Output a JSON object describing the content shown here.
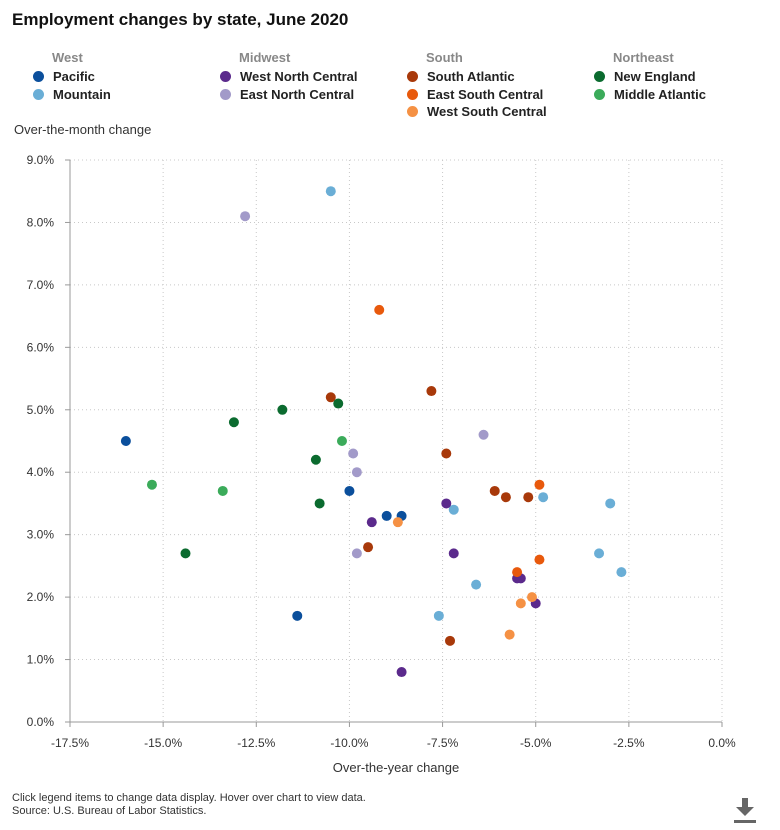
{
  "title": "Employment changes by state, June 2020",
  "legend": [
    {
      "region": "West",
      "items": [
        {
          "label": "Pacific",
          "color": "#0b4f9c"
        },
        {
          "label": "Mountain",
          "color": "#6aaed6"
        }
      ]
    },
    {
      "region": "Midwest",
      "items": [
        {
          "label": "West North Central",
          "color": "#5b2a8c"
        },
        {
          "label": "East North Central",
          "color": "#a29ac9"
        }
      ]
    },
    {
      "region": "South",
      "items": [
        {
          "label": "South Atlantic",
          "color": "#a8390a"
        },
        {
          "label": "East South Central",
          "color": "#e8590c"
        },
        {
          "label": "West South Central",
          "color": "#f59144"
        }
      ]
    },
    {
      "region": "Northeast",
      "items": [
        {
          "label": "New England",
          "color": "#0b6b2f"
        },
        {
          "label": "Middle Atlantic",
          "color": "#3bab5a"
        }
      ]
    }
  ],
  "footer": {
    "note": "Click legend items to change data display. Hover over chart to view data.",
    "source": "Source: U.S. Bureau of Labor Statistics."
  },
  "icons": {
    "download": "download-icon"
  },
  "chart_data": {
    "type": "scatter",
    "xlabel": "Over-the-year change",
    "ylabel": "Over-the-month change",
    "xlim": [
      -17.5,
      0.0
    ],
    "ylim": [
      0.0,
      9.0
    ],
    "x_ticks": [
      "-17.5%",
      "-15.0%",
      "-12.5%",
      "-10.0%",
      "-7.5%",
      "-5.0%",
      "-2.5%",
      "0.0%"
    ],
    "y_ticks": [
      "0.0%",
      "1.0%",
      "2.0%",
      "3.0%",
      "4.0%",
      "5.0%",
      "6.0%",
      "7.0%",
      "8.0%",
      "9.0%"
    ],
    "grid": true,
    "series": [
      {
        "name": "Pacific",
        "color": "#0b4f9c",
        "points": [
          [
            -16.0,
            4.5
          ],
          [
            -11.4,
            1.7
          ],
          [
            -10.0,
            3.7
          ],
          [
            -9.0,
            3.3
          ],
          [
            -8.6,
            3.3
          ]
        ]
      },
      {
        "name": "Mountain",
        "color": "#6aaed6",
        "points": [
          [
            -10.5,
            8.5
          ],
          [
            -7.6,
            1.7
          ],
          [
            -7.2,
            3.4
          ],
          [
            -6.6,
            2.2
          ],
          [
            -4.8,
            3.6
          ],
          [
            -3.3,
            2.7
          ],
          [
            -3.0,
            3.5
          ],
          [
            -2.7,
            2.4
          ]
        ]
      },
      {
        "name": "West North Central",
        "color": "#5b2a8c",
        "points": [
          [
            -9.4,
            3.2
          ],
          [
            -8.6,
            0.8
          ],
          [
            -7.4,
            3.5
          ],
          [
            -7.2,
            2.7
          ],
          [
            -5.5,
            2.3
          ],
          [
            -5.4,
            2.3
          ],
          [
            -5.0,
            1.9
          ]
        ]
      },
      {
        "name": "East North Central",
        "color": "#a29ac9",
        "points": [
          [
            -12.8,
            8.1
          ],
          [
            -9.9,
            4.3
          ],
          [
            -9.8,
            4.0
          ],
          [
            -9.8,
            2.7
          ],
          [
            -6.4,
            4.6
          ]
        ]
      },
      {
        "name": "South Atlantic",
        "color": "#a8390a",
        "points": [
          [
            -10.5,
            5.2
          ],
          [
            -9.5,
            2.8
          ],
          [
            -7.8,
            5.3
          ],
          [
            -7.4,
            4.3
          ],
          [
            -7.3,
            1.3
          ],
          [
            -6.1,
            3.7
          ],
          [
            -5.8,
            3.6
          ],
          [
            -5.2,
            3.6
          ]
        ]
      },
      {
        "name": "East South Central",
        "color": "#e8590c",
        "points": [
          [
            -9.2,
            6.6
          ],
          [
            -5.5,
            2.4
          ],
          [
            -4.9,
            3.8
          ],
          [
            -4.9,
            2.6
          ]
        ]
      },
      {
        "name": "West South Central",
        "color": "#f59144",
        "points": [
          [
            -8.7,
            3.2
          ],
          [
            -5.7,
            1.4
          ],
          [
            -5.4,
            1.9
          ],
          [
            -5.1,
            2.0
          ]
        ]
      },
      {
        "name": "New England",
        "color": "#0b6b2f",
        "points": [
          [
            -14.4,
            2.7
          ],
          [
            -13.1,
            4.8
          ],
          [
            -11.8,
            5.0
          ],
          [
            -10.9,
            4.2
          ],
          [
            -10.8,
            3.5
          ],
          [
            -10.3,
            5.1
          ]
        ]
      },
      {
        "name": "Middle Atlantic",
        "color": "#3bab5a",
        "points": [
          [
            -15.3,
            3.8
          ],
          [
            -13.4,
            3.7
          ],
          [
            -10.2,
            4.5
          ]
        ]
      }
    ]
  }
}
